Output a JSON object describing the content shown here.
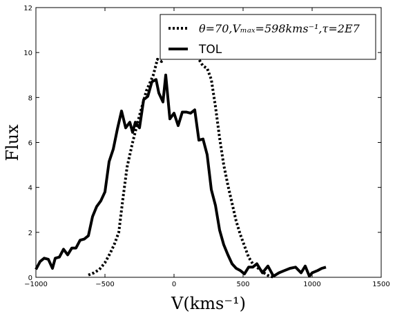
{
  "chart_data": {
    "type": "line",
    "xlabel": "V(kms⁻¹)",
    "ylabel": "Flux",
    "xlim": [
      -1000,
      1500
    ],
    "ylim": [
      0,
      12
    ],
    "xticks": [
      -1000,
      -500,
      0,
      500,
      1000,
      1500
    ],
    "yticks": [
      0,
      2,
      4,
      6,
      8,
      10,
      12
    ],
    "grid": false,
    "legend_position": "top-right",
    "series": [
      {
        "name": "θ=70,Vₘₐₓ=598kms⁻¹,τ=2E7",
        "style": "dotted",
        "color": "#000000",
        "x": [
          -620,
          -580,
          -540,
          -500,
          -460,
          -430,
          -400,
          -370,
          -340,
          -300,
          -250,
          -200,
          -150,
          -120,
          -90,
          -60,
          -30,
          0,
          30,
          60,
          90,
          120,
          150,
          180,
          210,
          240,
          270,
          300,
          330,
          360,
          390,
          420,
          450,
          480,
          510,
          540,
          570,
          610,
          650,
          690,
          730
        ],
        "y": [
          0.1,
          0.2,
          0.35,
          0.65,
          1.1,
          1.5,
          2.0,
          3.5,
          4.9,
          6.0,
          7.2,
          8.3,
          9.0,
          9.7,
          9.6,
          10.0,
          10.6,
          10.9,
          10.6,
          10.3,
          10.5,
          10.4,
          10.0,
          9.7,
          9.4,
          9.3,
          8.8,
          7.6,
          6.2,
          5.0,
          4.1,
          3.3,
          2.5,
          1.9,
          1.4,
          0.9,
          0.6,
          0.4,
          0.2,
          0.05,
          0.0
        ]
      },
      {
        "name": "TOL",
        "style": "solid",
        "color": "#000000",
        "x": [
          -1000,
          -970,
          -940,
          -910,
          -880,
          -860,
          -830,
          -800,
          -770,
          -740,
          -710,
          -680,
          -650,
          -620,
          -590,
          -560,
          -530,
          -500,
          -470,
          -440,
          -410,
          -380,
          -350,
          -320,
          -300,
          -280,
          -250,
          -220,
          -190,
          -160,
          -130,
          -110,
          -80,
          -60,
          -30,
          0,
          30,
          60,
          90,
          120,
          150,
          180,
          210,
          240,
          270,
          300,
          330,
          360,
          390,
          420,
          450,
          480,
          510,
          540,
          570,
          600,
          640,
          680,
          720,
          760,
          800,
          840,
          880,
          920,
          950,
          980,
          1000,
          1040,
          1070,
          1100
        ],
        "y": [
          0.35,
          0.7,
          0.85,
          0.8,
          0.4,
          0.85,
          0.9,
          1.25,
          1.0,
          1.3,
          1.3,
          1.65,
          1.7,
          1.85,
          2.7,
          3.15,
          3.4,
          3.8,
          5.15,
          5.7,
          6.6,
          7.4,
          6.65,
          6.9,
          6.45,
          6.9,
          6.65,
          7.9,
          8.05,
          8.7,
          8.8,
          8.2,
          7.8,
          9.0,
          7.05,
          7.3,
          6.75,
          7.35,
          7.35,
          7.3,
          7.45,
          6.1,
          6.15,
          5.45,
          3.9,
          3.2,
          2.1,
          1.45,
          1.0,
          0.6,
          0.4,
          0.3,
          0.15,
          0.45,
          0.45,
          0.6,
          0.2,
          0.5,
          0.05,
          0.2,
          0.3,
          0.4,
          0.45,
          0.2,
          0.5,
          0.05,
          0.2,
          0.3,
          0.4,
          0.45
        ]
      }
    ]
  }
}
